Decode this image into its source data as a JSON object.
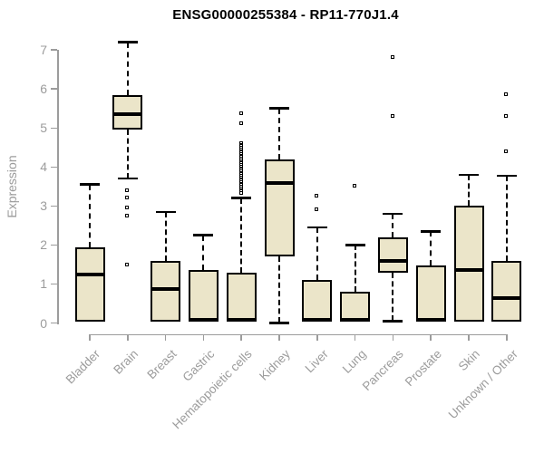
{
  "title": "ENSG00000255384 - RP11-770J1.4",
  "y_axis": {
    "label": "Expression",
    "ticks": [
      0,
      1,
      2,
      3,
      4,
      5,
      6,
      7
    ]
  },
  "colors": {
    "box_fill": "#EBE5C9",
    "box_border": "#000000",
    "median": "#000000",
    "whisker": "#000000",
    "outlier_fill": "#FFFFFF",
    "axis": "#9C9C9C",
    "tick_label": "#9C9C9C",
    "axis_label": "#9C9C9C",
    "title": "#000000",
    "background": "#FFFFFF"
  },
  "chart_data": {
    "type": "boxplot",
    "title": "ENSG00000255384 - RP11-770J1.4",
    "xlabel": "",
    "ylabel": "Expression",
    "ylim": [
      0,
      7.3
    ],
    "yticks": [
      0,
      1,
      2,
      3,
      4,
      5,
      6,
      7
    ],
    "grid": false,
    "legend": false,
    "categories": [
      "Bladder",
      "Brain",
      "Breast",
      "Gastric",
      "Hematopoietic cells",
      "Kidney",
      "Liver",
      "Lung",
      "Pancreas",
      "Prostate",
      "Skin",
      "Unknown / Other"
    ],
    "series": [
      {
        "name": "Bladder",
        "whisker_low": 0,
        "q1": 0.03,
        "median": 1.25,
        "q3": 1.95,
        "whisker_high": 3.55,
        "outliers": []
      },
      {
        "name": "Brain",
        "whisker_low": 3.7,
        "q1": 4.95,
        "median": 5.35,
        "q3": 5.85,
        "whisker_high": 7.2,
        "outliers": [
          3.4,
          3.2,
          2.95,
          2.75,
          1.48
        ]
      },
      {
        "name": "Breast",
        "whisker_low": 0,
        "q1": 0.03,
        "median": 0.88,
        "q3": 1.6,
        "whisker_high": 2.85,
        "outliers": []
      },
      {
        "name": "Gastric",
        "whisker_low": 0,
        "q1": 0.03,
        "median": 0.07,
        "q3": 1.35,
        "whisker_high": 2.25,
        "outliers": []
      },
      {
        "name": "Hematopoietic cells",
        "whisker_low": 0,
        "q1": 0.03,
        "median": 0.07,
        "q3": 1.3,
        "whisker_high": 3.2,
        "outliers": [
          5.36,
          5.1,
          4.6,
          4.56,
          4.52,
          4.48,
          4.44,
          4.4,
          4.36,
          4.32,
          4.28,
          4.24,
          4.2,
          4.16,
          4.12,
          4.08,
          4.04,
          4.0,
          3.96,
          3.92,
          3.88,
          3.84,
          3.8,
          3.76,
          3.72,
          3.68,
          3.64,
          3.6,
          3.56,
          3.52,
          3.48,
          3.44,
          3.4,
          3.36,
          3.32
        ]
      },
      {
        "name": "Kidney",
        "whisker_low": 0,
        "q1": 1.7,
        "median": 3.6,
        "q3": 4.2,
        "whisker_high": 5.5,
        "outliers": []
      },
      {
        "name": "Liver",
        "whisker_low": 0,
        "q1": 0.03,
        "median": 0.07,
        "q3": 1.1,
        "whisker_high": 2.45,
        "outliers": [
          3.25,
          2.9
        ]
      },
      {
        "name": "Lung",
        "whisker_low": 0,
        "q1": 0.03,
        "median": 0.07,
        "q3": 0.8,
        "whisker_high": 2.0,
        "outliers": [
          3.5
        ]
      },
      {
        "name": "Pancreas",
        "whisker_low": 0.05,
        "q1": 1.3,
        "median": 1.6,
        "q3": 2.2,
        "whisker_high": 2.8,
        "outliers": [
          6.8,
          5.3
        ]
      },
      {
        "name": "Prostate",
        "whisker_low": 0,
        "q1": 0.03,
        "median": 0.07,
        "q3": 1.47,
        "whisker_high": 2.35,
        "outliers": []
      },
      {
        "name": "Skin",
        "whisker_low": 0,
        "q1": 0.03,
        "median": 1.35,
        "q3": 3.0,
        "whisker_high": 3.8,
        "outliers": []
      },
      {
        "name": "Unknown / Other",
        "whisker_low": 0,
        "q1": 0.03,
        "median": 0.63,
        "q3": 1.58,
        "whisker_high": 3.77,
        "outliers": [
          5.85,
          5.3,
          4.4
        ]
      }
    ]
  }
}
